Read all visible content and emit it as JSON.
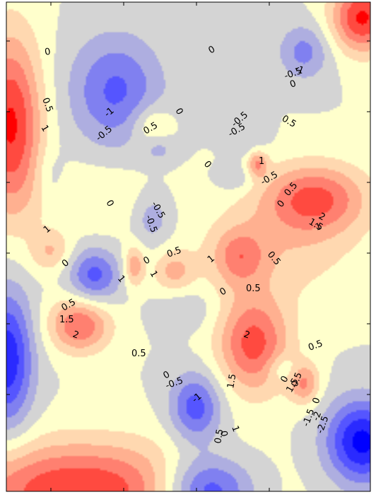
{
  "chart_data": {
    "type": "heatmap",
    "subtype": "filled-contour",
    "title": "",
    "xlabel": "",
    "ylabel": "",
    "colormap": "bwr",
    "levels": [
      -2.5,
      -2,
      -1.5,
      -1,
      -0.5,
      0,
      0.5,
      1,
      1.5,
      2,
      2.5
    ],
    "band_colors": [
      "#0000ff",
      "#2a2aff",
      "#5555ff",
      "#8080f0",
      "#aeaee0",
      "#d4d4d4",
      "#ffffcc",
      "#ffd8b0",
      "#ffb090",
      "#ff8070",
      "#ff4a40",
      "#ff0000"
    ],
    "vrange": [
      -2.5,
      2.5
    ],
    "axes_frame": true,
    "tick_marks_only": true,
    "contour_labels": [
      "0",
      "0.5",
      "1",
      "-1",
      "-0.5",
      "0",
      "0.5",
      "0",
      "-0.5",
      "-1",
      "-0.5",
      "0",
      "0.5",
      "0",
      "1",
      "-0.5",
      "0.5",
      "0",
      "-0.5",
      "2",
      "1.5",
      "1",
      "0",
      "-0.5",
      "1",
      "0",
      "-0.5",
      "1",
      "0",
      "0.5",
      "1",
      "0.5",
      "0",
      "0.5",
      "1",
      "0.5",
      "1.5",
      "2",
      "0.5",
      "2",
      "1.5",
      "0",
      "-0.5",
      "-1",
      "0",
      "0.5",
      "1",
      "0.5",
      "1.5",
      "0",
      "0.5",
      "-1.5",
      "-2",
      "-2.5",
      "0"
    ],
    "sources": [
      {
        "x": 0.3,
        "y": 0.18,
        "value": -1.6,
        "sx": 0.09,
        "sy": 0.08
      },
      {
        "x": 0.82,
        "y": 0.1,
        "value": -1.2,
        "sx": 0.05,
        "sy": 0.04
      },
      {
        "x": 0.01,
        "y": 0.25,
        "value": 2.6,
        "sx": 0.06,
        "sy": 0.13
      },
      {
        "x": 0.98,
        "y": 0.03,
        "value": 2.6,
        "sx": 0.06,
        "sy": 0.05
      },
      {
        "x": 0.85,
        "y": 0.4,
        "value": 2.0,
        "sx": 0.1,
        "sy": 0.05
      },
      {
        "x": 0.69,
        "y": 0.33,
        "value": 1.5,
        "sx": 0.02,
        "sy": 0.02
      },
      {
        "x": 0.4,
        "y": 0.25,
        "value": 0.9,
        "sx": 0.04,
        "sy": 0.03
      },
      {
        "x": 0.66,
        "y": 0.28,
        "value": -0.5,
        "sx": 0.04,
        "sy": 0.03
      },
      {
        "x": 0.63,
        "y": 0.36,
        "value": -0.6,
        "sx": 0.04,
        "sy": 0.02
      },
      {
        "x": 0.4,
        "y": 0.44,
        "value": -0.9,
        "sx": 0.04,
        "sy": 0.04
      },
      {
        "x": 0.24,
        "y": 0.56,
        "value": -1.7,
        "sx": 0.05,
        "sy": 0.04
      },
      {
        "x": 0.2,
        "y": 0.66,
        "value": 2.0,
        "sx": 0.06,
        "sy": 0.04
      },
      {
        "x": 0.12,
        "y": 0.51,
        "value": 1.0,
        "sx": 0.04,
        "sy": 0.03
      },
      {
        "x": 0.35,
        "y": 0.54,
        "value": 1.4,
        "sx": 0.02,
        "sy": 0.03
      },
      {
        "x": 0.46,
        "y": 0.55,
        "value": 1.1,
        "sx": 0.04,
        "sy": 0.03
      },
      {
        "x": 0.64,
        "y": 0.52,
        "value": 1.3,
        "sx": 0.05,
        "sy": 0.04
      },
      {
        "x": 0.68,
        "y": 0.7,
        "value": 2.2,
        "sx": 0.07,
        "sy": 0.07
      },
      {
        "x": 0.52,
        "y": 0.83,
        "value": -1.8,
        "sx": 0.05,
        "sy": 0.05
      },
      {
        "x": 0.82,
        "y": 0.78,
        "value": 1.5,
        "sx": 0.03,
        "sy": 0.03
      },
      {
        "x": 0.76,
        "y": 0.75,
        "value": -0.7,
        "sx": 0.03,
        "sy": 0.02
      },
      {
        "x": 0.0,
        "y": 0.73,
        "value": -2.4,
        "sx": 0.05,
        "sy": 0.1
      },
      {
        "x": 0.2,
        "y": 1.0,
        "value": 2.5,
        "sx": 0.24,
        "sy": 0.07
      },
      {
        "x": 0.55,
        "y": 1.0,
        "value": -2.4,
        "sx": 0.09,
        "sy": 0.05
      },
      {
        "x": 0.98,
        "y": 0.9,
        "value": -2.7,
        "sx": 0.07,
        "sy": 0.06
      },
      {
        "x": 0.5,
        "y": 0.63,
        "value": -0.5,
        "sx": 0.06,
        "sy": 0.03
      },
      {
        "x": 0.75,
        "y": 0.5,
        "value": 0.8,
        "sx": 0.16,
        "sy": 0.08
      },
      {
        "x": 0.12,
        "y": 0.36,
        "value": -0.5,
        "sx": 0.03,
        "sy": 0.04
      },
      {
        "x": 0.25,
        "y": 0.4,
        "value": 0.5,
        "sx": 0.12,
        "sy": 0.05
      },
      {
        "x": 0.42,
        "y": 0.3,
        "value": -0.6,
        "sx": 0.03,
        "sy": 0.02
      }
    ]
  }
}
